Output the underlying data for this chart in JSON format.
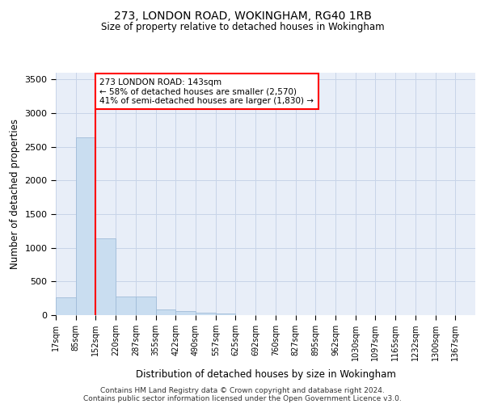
{
  "title1": "273, LONDON ROAD, WOKINGHAM, RG40 1RB",
  "title2": "Size of property relative to detached houses in Wokingham",
  "xlabel": "Distribution of detached houses by size in Wokingham",
  "ylabel": "Number of detached properties",
  "bar_values": [
    270,
    2640,
    1140,
    280,
    280,
    90,
    60,
    40,
    30,
    0,
    0,
    0,
    0,
    0,
    0,
    0,
    0,
    0,
    0,
    0,
    0
  ],
  "bar_labels": [
    "17sqm",
    "85sqm",
    "152sqm",
    "220sqm",
    "287sqm",
    "355sqm",
    "422sqm",
    "490sqm",
    "557sqm",
    "625sqm",
    "692sqm",
    "760sqm",
    "827sqm",
    "895sqm",
    "962sqm",
    "1030sqm",
    "1097sqm",
    "1165sqm",
    "1232sqm",
    "1300sqm",
    "1367sqm"
  ],
  "bar_color": "#c9ddf0",
  "bar_edgecolor": "#a0bcd8",
  "property_line_index": 2,
  "property_label": "273 LONDON ROAD: 143sqm",
  "annotation_line1": "← 58% of detached houses are smaller (2,570)",
  "annotation_line2": "41% of semi-detached houses are larger (1,830) →",
  "ylim": [
    0,
    3600
  ],
  "yticks": [
    0,
    500,
    1000,
    1500,
    2000,
    2500,
    3000,
    3500
  ],
  "grid_color": "#c8d4e8",
  "background_color": "#e8eef8",
  "footer1": "Contains HM Land Registry data © Crown copyright and database right 2024.",
  "footer2": "Contains public sector information licensed under the Open Government Licence v3.0."
}
